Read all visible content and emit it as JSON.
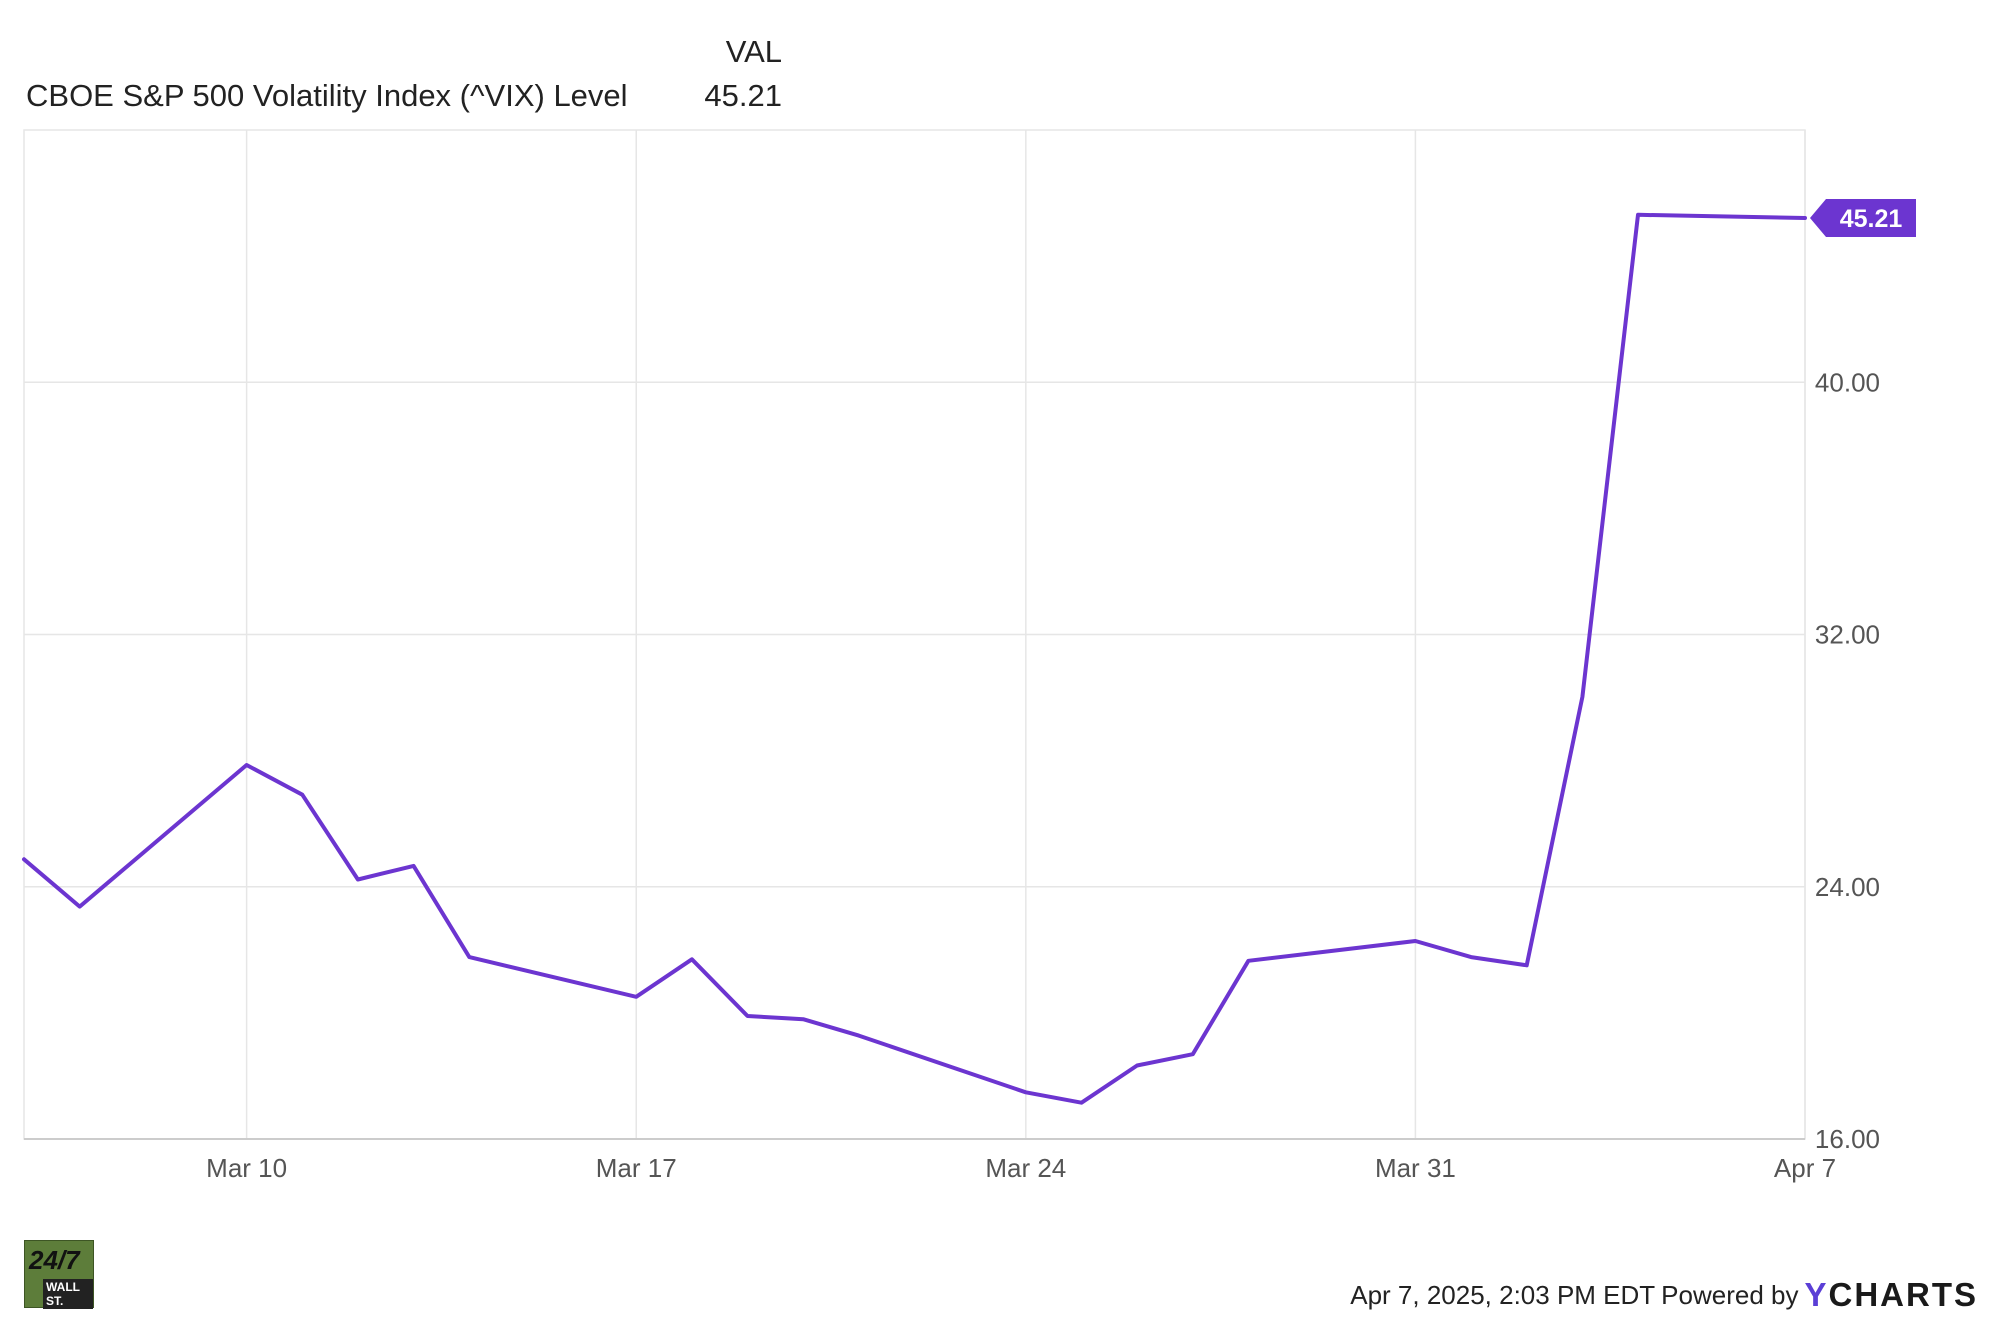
{
  "legend": {
    "column_header": "VAL",
    "series_name": "CBOE S&P 500 Volatility Index (^VIX) Level",
    "series_value": "45.21"
  },
  "colors": {
    "line": "#6c35d0",
    "grid": "#e6e6e6",
    "axis_text": "#555555",
    "tag_text": "#ffffff"
  },
  "footer": {
    "timestamp": "Apr 7, 2025, 2:03 PM EDT",
    "powered_by": "Powered by",
    "ycharts_y": "Y",
    "ycharts_rest": "CHARTS"
  },
  "brand_logo": {
    "line1": "24/7",
    "line2": "WALL ST."
  },
  "chart_data": {
    "type": "line",
    "title": "",
    "xlabel": "",
    "ylabel": "",
    "ylim": [
      16,
      48
    ],
    "yticks": [
      16,
      24,
      32,
      40
    ],
    "ytick_labels": [
      "16.00",
      "24.00",
      "32.00",
      "40.00"
    ],
    "xticks": [
      "Mar 10",
      "Mar 17",
      "Mar 24",
      "Mar 31",
      "Apr 7"
    ],
    "grid": true,
    "last_value_label": "45.21",
    "series": [
      {
        "name": "CBOE S&P 500 Volatility Index (^VIX) Level",
        "x": [
          "2025-03-06",
          "2025-03-07",
          "2025-03-10",
          "2025-03-11",
          "2025-03-12",
          "2025-03-13",
          "2025-03-14",
          "2025-03-17",
          "2025-03-18",
          "2025-03-19",
          "2025-03-20",
          "2025-03-21",
          "2025-03-24",
          "2025-03-25",
          "2025-03-26",
          "2025-03-27",
          "2025-03-28",
          "2025-03-31",
          "2025-04-01",
          "2025-04-02",
          "2025-04-03",
          "2025-04-04",
          "2025-04-07"
        ],
        "values": [
          24.87,
          23.37,
          27.86,
          26.92,
          24.23,
          24.66,
          21.77,
          20.51,
          21.7,
          19.9,
          19.8,
          19.28,
          17.48,
          17.15,
          18.33,
          18.69,
          21.65,
          22.28,
          21.77,
          21.51,
          30.02,
          45.31,
          45.21
        ]
      }
    ]
  }
}
